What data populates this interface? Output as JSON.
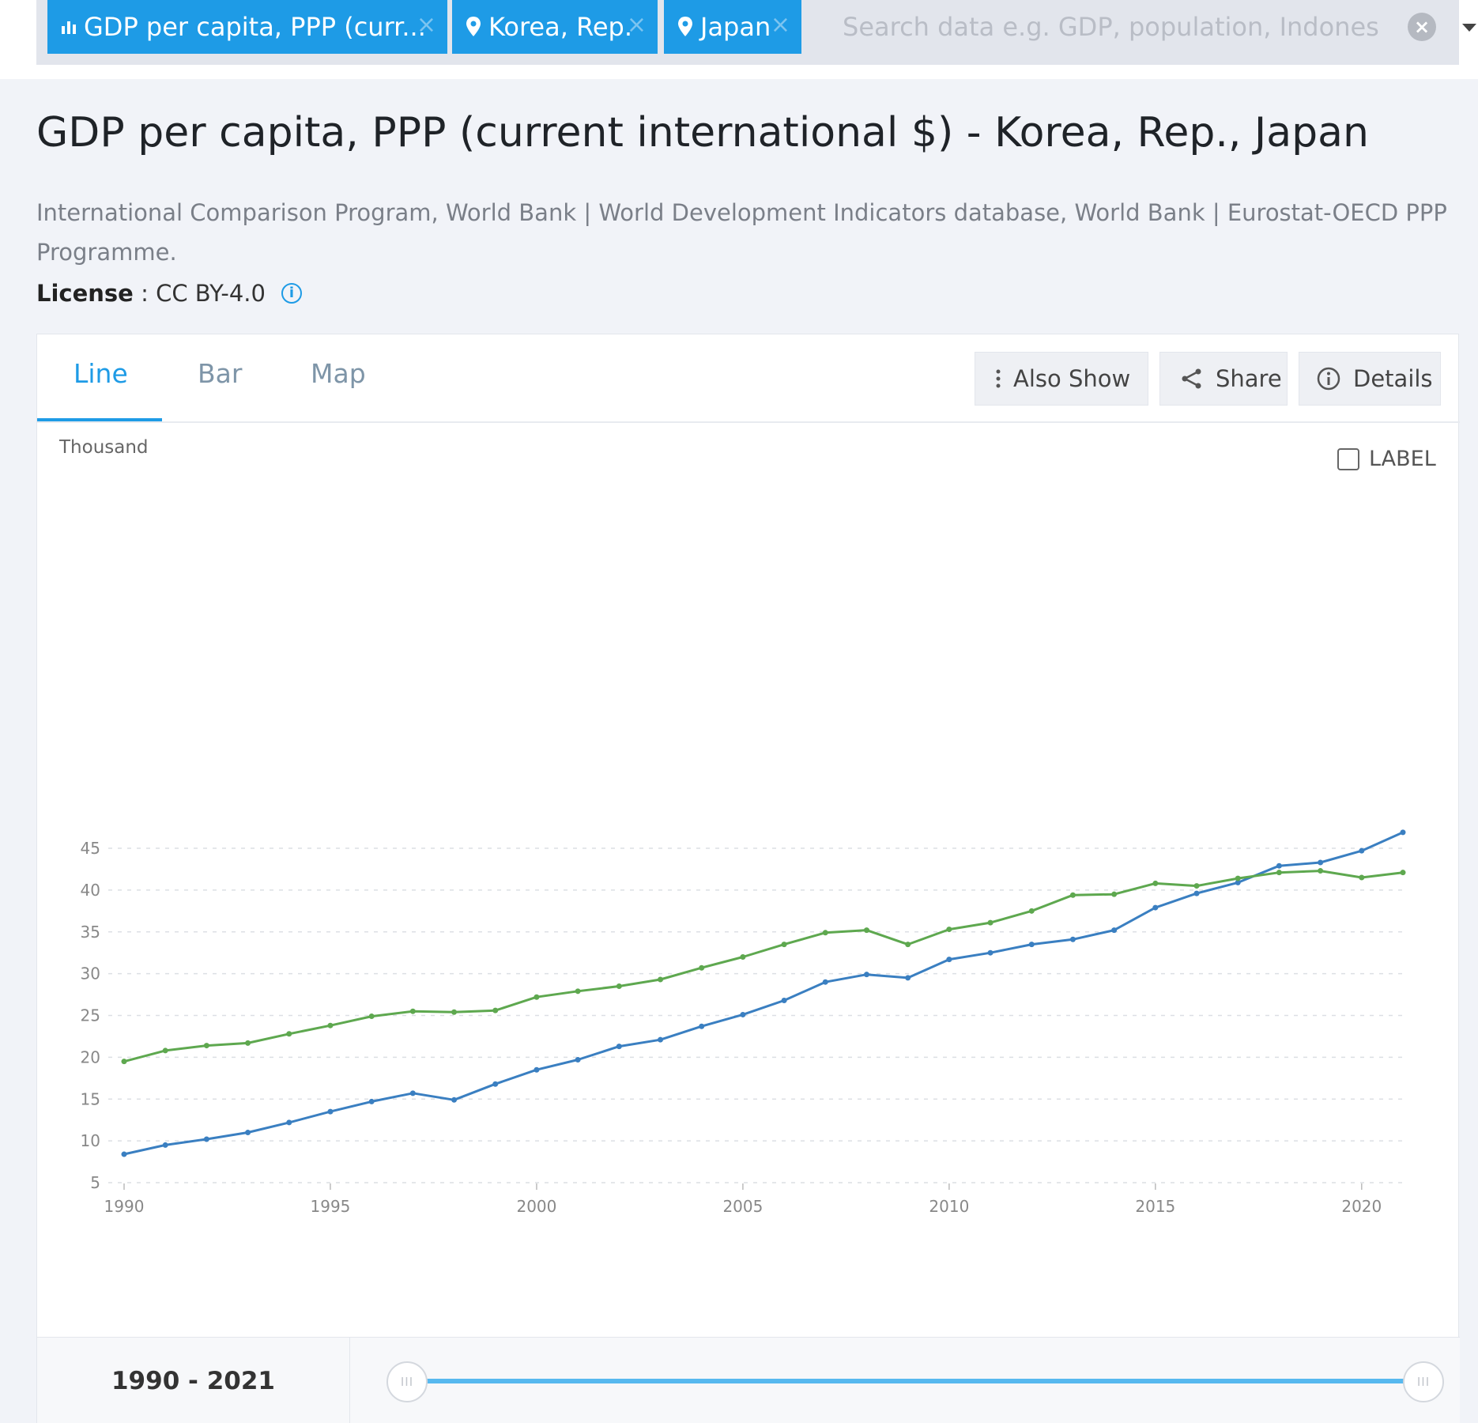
{
  "search": {
    "chips": [
      {
        "label": "GDP per capita, PPP (curr...",
        "icon": "bar-chart-icon"
      },
      {
        "label": "Korea, Rep.",
        "icon": "map-pin-icon"
      },
      {
        "label": "Japan",
        "icon": "map-pin-icon"
      }
    ],
    "placeholder": "Search data e.g. GDP, population, Indonesia",
    "chip_close": "×",
    "clear": "×"
  },
  "page": {
    "title": "GDP per capita, PPP (current international $) - Korea, Rep., Japan",
    "sources": "International Comparison Program, World Bank | World Development Indicators database, World Bank | Eurostat-OECD PPP Programme.",
    "license_key": "License",
    "license_sep": " : ",
    "license_value": "CC BY-4.0",
    "license_info": "i"
  },
  "tabs": [
    {
      "label": "Line",
      "active": true
    },
    {
      "label": "Bar",
      "active": false
    },
    {
      "label": "Map",
      "active": false
    }
  ],
  "toolbar": {
    "also_show": "Also Show",
    "share": "Share",
    "details": "Details"
  },
  "label_toggle": "LABEL",
  "range": {
    "label": "1990 - 2021",
    "start": 1990,
    "end": 2021,
    "handle_glyph": "III"
  },
  "colors": {
    "accent": "#1e9be6",
    "korea": "#3a7fc1",
    "japan": "#5ea84f"
  },
  "chart_data": {
    "type": "line",
    "title": "",
    "unit_label": "Thousand",
    "xlabel": "",
    "ylabel": "",
    "xlim": [
      1990,
      2021
    ],
    "ylim": [
      5,
      47
    ],
    "yticks": [
      5,
      10,
      15,
      20,
      25,
      30,
      35,
      40,
      45
    ],
    "xticks": [
      1990,
      1995,
      2000,
      2005,
      2010,
      2015,
      2020
    ],
    "grid": true,
    "legend": "none",
    "x": [
      1990,
      1991,
      1992,
      1993,
      1994,
      1995,
      1996,
      1997,
      1998,
      1999,
      2000,
      2001,
      2002,
      2003,
      2004,
      2005,
      2006,
      2007,
      2008,
      2009,
      2010,
      2011,
      2012,
      2013,
      2014,
      2015,
      2016,
      2017,
      2018,
      2019,
      2020,
      2021
    ],
    "series": [
      {
        "name": "Korea, Rep.",
        "color": "#3a7fc1",
        "values": [
          8.4,
          9.5,
          10.2,
          11.0,
          12.2,
          13.5,
          14.7,
          15.7,
          14.9,
          16.8,
          18.5,
          19.7,
          21.3,
          22.1,
          23.7,
          25.1,
          26.8,
          29.0,
          29.9,
          29.5,
          31.7,
          32.5,
          33.5,
          34.1,
          35.2,
          37.9,
          39.6,
          40.9,
          42.9,
          43.3,
          44.7,
          46.9
        ]
      },
      {
        "name": "Japan",
        "color": "#5ea84f",
        "values": [
          19.5,
          20.8,
          21.4,
          21.7,
          22.8,
          23.8,
          24.9,
          25.5,
          25.4,
          25.6,
          27.2,
          27.9,
          28.5,
          29.3,
          30.7,
          32.0,
          33.5,
          34.9,
          35.2,
          33.5,
          35.3,
          36.1,
          37.5,
          39.4,
          39.5,
          40.8,
          40.5,
          41.4,
          42.1,
          42.3,
          41.5,
          42.1
        ]
      }
    ]
  }
}
